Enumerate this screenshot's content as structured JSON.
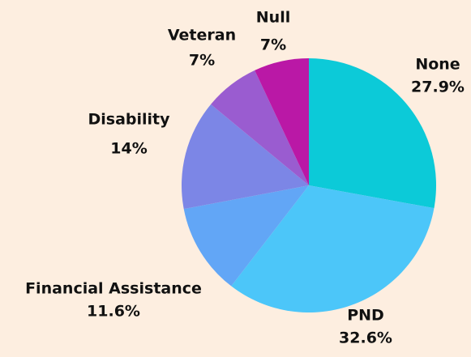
{
  "chart_data": {
    "type": "pie",
    "categories": [
      "None",
      "PND",
      "Financial Assistance",
      "Disability",
      "Veteran",
      "Null"
    ],
    "values": [
      27.9,
      32.6,
      11.6,
      14,
      7,
      7
    ],
    "value_labels": [
      "27.9%",
      "32.6%",
      "11.6%",
      "14%",
      "7%",
      "7%"
    ],
    "colors": [
      "#0ccad8",
      "#4cc6f9",
      "#62a6f6",
      "#7c86e6",
      "#9a5cd0",
      "#ba18a6"
    ]
  }
}
